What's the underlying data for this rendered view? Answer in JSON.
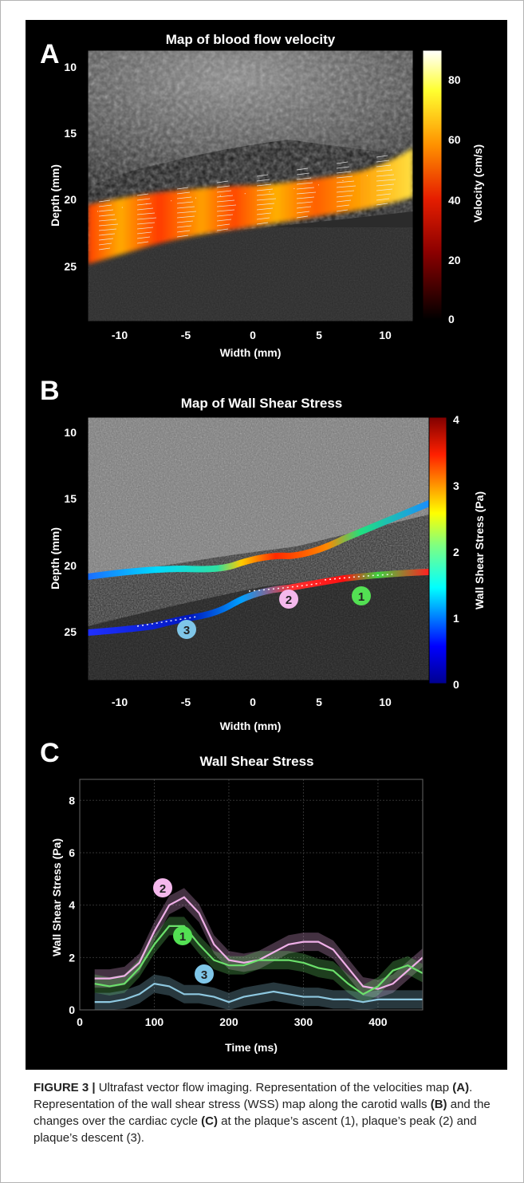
{
  "figure": {
    "panels": {
      "a": {
        "letter": "A",
        "title": "Map of blood flow velocity",
        "ylabel": "Depth (mm)",
        "xlabel": "Width (mm)",
        "yticks": [
          "10",
          "15",
          "20",
          "25"
        ],
        "xticks": [
          "-10",
          "-5",
          "0",
          "5",
          "10"
        ],
        "colorbar_label": "Velocity (cm/s)",
        "colorbar_ticks": [
          "80",
          "60",
          "40",
          "20",
          "0"
        ]
      },
      "b": {
        "letter": "B",
        "title": "Map of Wall Shear Stress",
        "ylabel": "Depth (mm)",
        "xlabel": "Width (mm)",
        "yticks": [
          "10",
          "15",
          "20",
          "25"
        ],
        "xticks": [
          "-10",
          "-5",
          "0",
          "5",
          "10"
        ],
        "colorbar_label": "Wall Shear Stress (Pa)",
        "colorbar_ticks": [
          "4",
          "3",
          "2",
          "1",
          "0"
        ],
        "markers": [
          "1",
          "2",
          "3"
        ],
        "marker_colors": [
          "#53e053",
          "#f4b8ec",
          "#7fc6e8"
        ]
      },
      "c": {
        "letter": "C",
        "title": "Wall Shear Stress",
        "ylabel": "Wall Shear Stress (Pa)",
        "xlabel": "Time (ms)",
        "yticks": [
          "0",
          "2",
          "4",
          "6",
          "8"
        ],
        "xticks": [
          "0",
          "100",
          "200",
          "300",
          "400"
        ],
        "markers": [
          "2",
          "1",
          "3"
        ]
      }
    }
  },
  "chart_data": {
    "type": "line",
    "title": "Wall Shear Stress",
    "xlabel": "Time (ms)",
    "ylabel": "Wall Shear Stress (Pa)",
    "xlim": [
      0,
      460
    ],
    "ylim": [
      0,
      8.8
    ],
    "grid": true,
    "x": [
      20,
      40,
      60,
      80,
      100,
      120,
      140,
      160,
      180,
      200,
      220,
      240,
      260,
      280,
      300,
      320,
      340,
      360,
      380,
      400,
      420,
      440,
      460
    ],
    "series": [
      {
        "name": "2",
        "color": "#f0b0e8",
        "values": [
          1.2,
          1.2,
          1.3,
          1.8,
          3.0,
          4.0,
          4.3,
          3.7,
          2.5,
          1.9,
          1.8,
          1.9,
          2.2,
          2.5,
          2.6,
          2.6,
          2.3,
          1.6,
          0.9,
          0.8,
          1.0,
          1.5,
          2.0
        ]
      },
      {
        "name": "1",
        "color": "#6be06b",
        "values": [
          1.0,
          0.9,
          1.0,
          1.6,
          2.5,
          3.2,
          3.2,
          2.5,
          1.9,
          1.7,
          1.7,
          1.9,
          1.9,
          1.9,
          1.8,
          1.6,
          1.5,
          1.0,
          0.6,
          0.9,
          1.5,
          1.7,
          1.4
        ]
      },
      {
        "name": "3",
        "color": "#8ec8e0",
        "values": [
          0.3,
          0.3,
          0.4,
          0.6,
          1.0,
          0.9,
          0.6,
          0.6,
          0.5,
          0.3,
          0.5,
          0.6,
          0.7,
          0.6,
          0.5,
          0.5,
          0.4,
          0.4,
          0.3,
          0.4,
          0.4,
          0.4,
          0.4
        ]
      }
    ]
  },
  "caption": {
    "label": "FIGURE 3 |",
    "s1": " Ultrafast vector flow imaging. Representation of the velocities map ",
    "b1": "(A)",
    "s2": ". Representation of the wall shear stress (WSS) map along the carotid walls ",
    "b2": "(B)",
    "s3": " and the changes over the cardiac cycle ",
    "b3": "(C)",
    "s4": " at the plaque’s ascent (1), plaque’s peak (2) and plaque’s descent (3)."
  }
}
